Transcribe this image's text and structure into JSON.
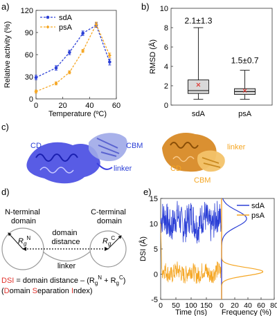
{
  "panels": {
    "a": "a)",
    "b": "b)",
    "c": "c)",
    "d": "d)",
    "e": "e)"
  },
  "colors": {
    "sdA": "#2b3fd6",
    "psA": "#f5a623",
    "dsi_text": "#e0312b",
    "mean_marker": "#e0312b",
    "box_fill": "#d9d9d9",
    "divider": "#c0392b"
  },
  "chart_data": [
    {
      "type": "line",
      "panel": "a",
      "xlabel": "Temperature (ºC)",
      "ylabel": "Relative activity (%)",
      "xlim": [
        0,
        60
      ],
      "ylim": [
        0,
        120
      ],
      "x_ticks": [
        "0",
        "20",
        "40",
        "60"
      ],
      "y_ticks": [
        "0",
        "30",
        "60",
        "90",
        "120"
      ],
      "legend_position": "top-left",
      "series": [
        {
          "name": "sdA",
          "color": "#2b3fd6",
          "x": [
            0,
            15,
            25,
            35,
            45,
            55
          ],
          "y": [
            29,
            42,
            63,
            89,
            100,
            50
          ],
          "err": [
            3,
            3,
            3,
            3,
            3,
            4
          ]
        },
        {
          "name": "psA",
          "color": "#f5a623",
          "x": [
            0,
            15,
            25,
            35,
            45,
            55
          ],
          "y": [
            10,
            21,
            36,
            65,
            101,
            59
          ],
          "err": [
            2,
            2,
            2,
            2,
            3,
            3
          ]
        }
      ]
    },
    {
      "type": "box",
      "panel": "b",
      "ylabel": "RMSD (Å)",
      "ylim": [
        0,
        10
      ],
      "y_ticks": [
        "0",
        "2",
        "4",
        "6",
        "8",
        "10"
      ],
      "categories": [
        "sdA",
        "psA"
      ],
      "boxes": [
        {
          "name": "sdA",
          "min": 0.6,
          "q1": 1.2,
          "median": 1.5,
          "q3": 2.6,
          "max": 8.0,
          "mean": 2.1,
          "label": "2.1±1.3"
        },
        {
          "name": "psA",
          "min": 0.6,
          "q1": 1.1,
          "median": 1.4,
          "q3": 1.7,
          "max": 3.6,
          "mean": 1.5,
          "label": "1.5±0.7"
        }
      ]
    },
    {
      "type": "line",
      "panel": "e",
      "xlabel": "Time (ns)",
      "ylabel": "DSI (Å)",
      "xlim": [
        0,
        200
      ],
      "ylim": [
        -5,
        15
      ],
      "x_ticks": [
        "0",
        "50",
        "100",
        "150"
      ],
      "y_ticks": [
        "-5",
        "0",
        "5",
        "10",
        "15"
      ],
      "series": [
        {
          "name": "sdA",
          "color": "#2b3fd6",
          "mean": 10.5,
          "range": [
            6,
            14.5
          ]
        },
        {
          "name": "psA",
          "color": "#f5a623",
          "mean": 0.3,
          "range": [
            -2,
            2.5
          ],
          "initial": 10
        }
      ]
    },
    {
      "type": "area",
      "panel": "e",
      "xlabel": "Frequency (%)",
      "xlim": [
        0,
        80
      ],
      "x_ticks": [
        "0",
        "20",
        "40",
        "60",
        "80"
      ],
      "legend_position": "top-right",
      "series": [
        {
          "name": "sdA",
          "color": "#2b3fd6",
          "peak_y": 11,
          "peak_freq": 38,
          "sd": 1.6
        },
        {
          "name": "psA",
          "color": "#f5a623",
          "peak_y": 0.5,
          "peak_freq": 63,
          "sd": 0.8
        }
      ]
    }
  ],
  "structure": {
    "sdA_labels": {
      "cd": "CD",
      "cbm": "CBM",
      "linker": "linker"
    },
    "psA_labels": {
      "cd": "CD",
      "cbm": "CBM",
      "linker": "linker"
    }
  },
  "schematic": {
    "n_domain": "N-terminal\ndomain",
    "c_domain": "C-terminal\ndomain",
    "domain_distance": "domain\ndistance",
    "linker": "linker",
    "rg_n": "R",
    "rg_n_sub": "g",
    "rg_n_sup": "N",
    "rg_c": "R",
    "rg_c_sub": "g",
    "rg_c_sup": "C",
    "formula_dsi": "DSI",
    "formula_rest": " = domain distance – (R",
    "formula_sub1": "g",
    "formula_sup1": "N",
    "formula_plus": " + R",
    "formula_sub2": "g",
    "formula_sup2": "C",
    "formula_close": ")",
    "expansion_open": "(",
    "expansion_D": "D",
    "expansion_omain": "omain ",
    "expansion_S": "S",
    "expansion_eparation": "eparation ",
    "expansion_I": "I",
    "expansion_ndex": "ndex)"
  }
}
